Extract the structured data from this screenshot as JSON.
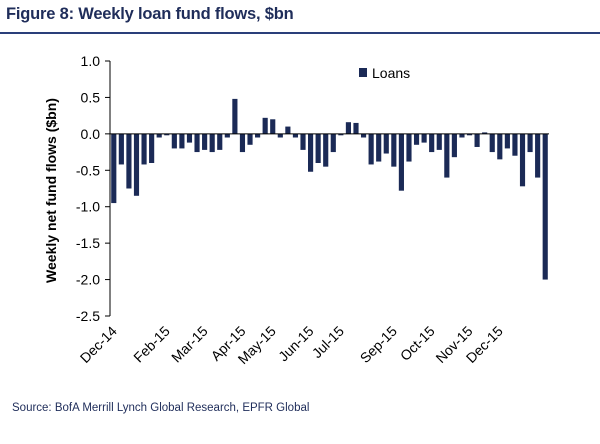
{
  "header": {
    "title": "Figure 8: Weekly loan fund flows, $bn"
  },
  "footer": {
    "source": "Source: BofA Merrill Lynch Global Research, EPFR Global"
  },
  "colors": {
    "bar": "#1b2a56",
    "axis": "#000000",
    "title_rule": "#2a3f7a"
  },
  "chart_data": {
    "type": "bar",
    "ylabel": "Weekly net fund flows ($bn)",
    "xlabel": "",
    "ylim": [
      -2.5,
      1.0
    ],
    "yticks": [
      1.0,
      0.5,
      0.0,
      -0.5,
      -1.0,
      -1.5,
      -2.0,
      -2.5
    ],
    "ytick_labels": [
      "1.0",
      "0.5",
      "0.0",
      "-0.5",
      "-1.0",
      "-1.5",
      "-2.0",
      "-2.5"
    ],
    "x_labels": [
      {
        "label": "Dec-14",
        "week": 0
      },
      {
        "label": "Feb-15",
        "week": 7
      },
      {
        "label": "Mar-15",
        "week": 12
      },
      {
        "label": "Apr-15",
        "week": 17
      },
      {
        "label": "May-15",
        "week": 21
      },
      {
        "label": "Jun-15",
        "week": 26
      },
      {
        "label": "Jul-15",
        "week": 30
      },
      {
        "label": "Sep-15",
        "week": 37
      },
      {
        "label": "Oct-15",
        "week": 42
      },
      {
        "label": "Nov-15",
        "week": 47
      },
      {
        "label": "Dec-15",
        "week": 51
      }
    ],
    "legend": {
      "position": "top-right"
    },
    "series": [
      {
        "name": "Loans",
        "values": [
          -0.95,
          -0.42,
          -0.75,
          -0.85,
          -0.42,
          -0.4,
          -0.05,
          -0.02,
          -0.2,
          -0.2,
          -0.12,
          -0.25,
          -0.22,
          -0.25,
          -0.22,
          -0.05,
          0.48,
          -0.25,
          -0.15,
          -0.05,
          0.22,
          0.2,
          -0.05,
          0.1,
          -0.05,
          -0.22,
          -0.52,
          -0.4,
          -0.45,
          -0.25,
          -0.02,
          0.16,
          0.15,
          -0.05,
          -0.42,
          -0.38,
          -0.27,
          -0.45,
          -0.78,
          -0.38,
          -0.15,
          -0.12,
          -0.25,
          -0.22,
          -0.6,
          -0.32,
          -0.05,
          -0.02,
          -0.18,
          0.02,
          -0.25,
          -0.35,
          -0.2,
          -0.3,
          -0.72,
          -0.25,
          -0.6,
          -2.0
        ]
      }
    ]
  }
}
